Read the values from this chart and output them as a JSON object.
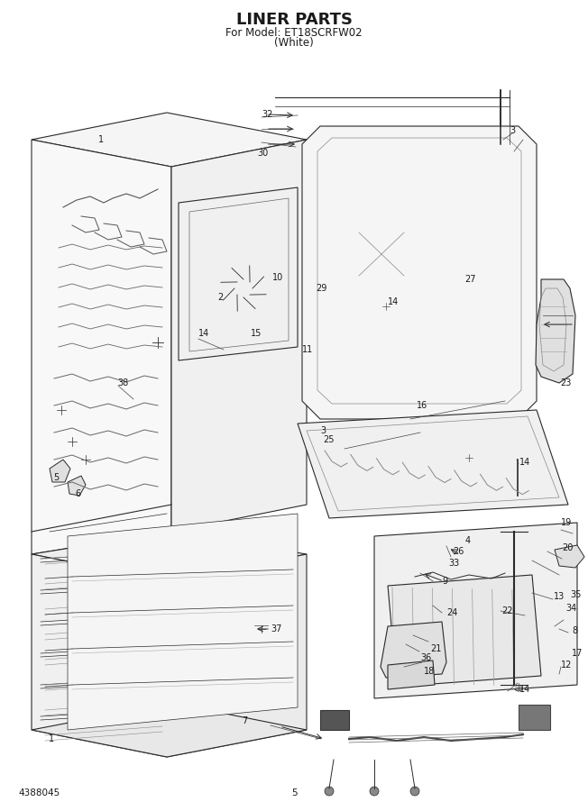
{
  "title_line1": "LINER PARTS",
  "title_line2": "For Model: ET18SCRFW02",
  "title_line3": "(White)",
  "bottom_left_text": "4388045",
  "bottom_center_text": "5",
  "bg_color": "#ffffff",
  "text_color": "#1a1a1a",
  "title_fontsize": 13,
  "subtitle_fontsize": 8.5,
  "small_fontsize": 7.5,
  "label_fontsize": 7,
  "figwidth": 6.52,
  "figheight": 9.0,
  "dpi": 100
}
